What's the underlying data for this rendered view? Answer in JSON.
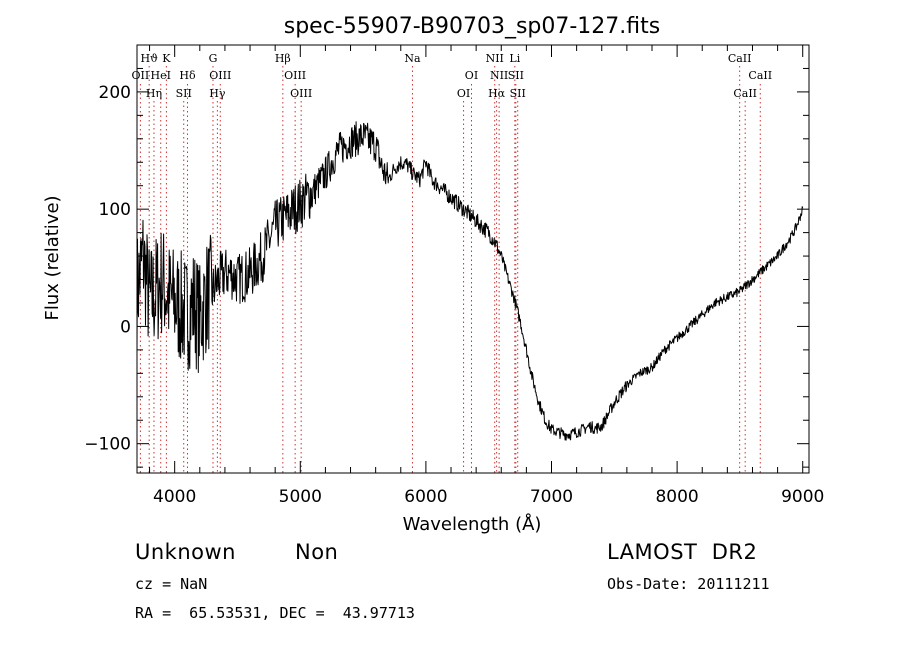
{
  "chart_data": {
    "type": "line",
    "title": "spec-55907-B90703_sp07-127.fits",
    "xlabel": "Wavelength (Å)",
    "ylabel": "Flux (relative)",
    "xlim": [
      3700,
      9050
    ],
    "ylim": [
      -125,
      240
    ],
    "xticks": [
      4000,
      5000,
      6000,
      7000,
      8000,
      9000
    ],
    "yticks": [
      -100,
      0,
      100,
      200
    ],
    "ytick_labels": [
      "−100",
      "0",
      "100",
      "200"
    ],
    "grid": false,
    "series": [
      {
        "x": [
          3700,
          3750,
          3800,
          3850,
          3900,
          3950,
          4000,
          4050,
          4100,
          4150,
          4200,
          4250,
          4300,
          4350,
          4400,
          4450,
          4500,
          4600,
          4700,
          4800,
          4900,
          5000,
          5100,
          5200,
          5300,
          5400,
          5450,
          5500,
          5550,
          5600,
          5650,
          5700,
          5750,
          5800,
          5850,
          5900,
          5950,
          6000,
          6050,
          6100,
          6200,
          6300,
          6400,
          6500,
          6550,
          6600,
          6650,
          6700,
          6750,
          6800,
          6850,
          6900,
          6950,
          7000,
          7050,
          7100,
          7150,
          7200,
          7250,
          7300,
          7350,
          7400,
          7450,
          7500,
          7600,
          7700,
          7800,
          7900,
          8000,
          8100,
          8200,
          8300,
          8400,
          8500,
          8600,
          8700,
          8800,
          8900,
          8950,
          9000
        ],
        "y": [
          30,
          60,
          20,
          30,
          40,
          25,
          20,
          15,
          10,
          20,
          5,
          25,
          30,
          40,
          45,
          45,
          40,
          45,
          60,
          85,
          95,
          105,
          115,
          130,
          150,
          158,
          160,
          162,
          158,
          155,
          135,
          125,
          135,
          140,
          138,
          130,
          125,
          140,
          125,
          120,
          110,
          100,
          90,
          80,
          72,
          60,
          42,
          25,
          5,
          -20,
          -45,
          -65,
          -80,
          -88,
          -90,
          -92,
          -92,
          -90,
          -88,
          -85,
          -87,
          -85,
          -75,
          -65,
          -50,
          -40,
          -35,
          -20,
          -10,
          0,
          10,
          20,
          25,
          30,
          40,
          50,
          60,
          75,
          85,
          100
        ]
      }
    ],
    "line_markers": [
      {
        "label": "Hϑ",
        "x": 3797,
        "row": 1
      },
      {
        "label": "K",
        "x": 3934,
        "row": 1
      },
      {
        "label": "G",
        "x": 4305,
        "row": 1
      },
      {
        "label": "Hβ",
        "x": 4861,
        "row": 1
      },
      {
        "label": "Na",
        "x": 5893,
        "row": 1
      },
      {
        "label": "NII",
        "x": 6548,
        "row": 1
      },
      {
        "label": "Li",
        "x": 6708,
        "row": 1
      },
      {
        "label": "CaII",
        "x": 8498,
        "row": 1
      },
      {
        "label": "OII",
        "x": 3727,
        "row": 2
      },
      {
        "label": "HeI",
        "x": 3889,
        "row": 2
      },
      {
        "label": "Hδ",
        "x": 4102,
        "row": 2
      },
      {
        "label": "OIII",
        "x": 4363,
        "row": 2
      },
      {
        "label": "OIII",
        "x": 4959,
        "row": 2
      },
      {
        "label": "OI",
        "x": 6363,
        "row": 2
      },
      {
        "label": "NII",
        "x": 6583,
        "row": 2
      },
      {
        "label": "SII",
        "x": 6716,
        "row": 2
      },
      {
        "label": "CaII",
        "x": 8662,
        "row": 2
      },
      {
        "label": "Hη",
        "x": 3835,
        "row": 3
      },
      {
        "label": "SII",
        "x": 4072,
        "row": 3
      },
      {
        "label": "Hγ",
        "x": 4340,
        "row": 3
      },
      {
        "label": "OIII",
        "x": 5007,
        "row": 3
      },
      {
        "label": "OI",
        "x": 6300,
        "row": 3
      },
      {
        "label": "Hα",
        "x": 6563,
        "row": 3
      },
      {
        "label": "SII",
        "x": 6731,
        "row": 3
      },
      {
        "label": "CaII",
        "x": 8542,
        "row": 3
      }
    ]
  },
  "info": {
    "class_label": "Unknown",
    "subclass_label": "Non",
    "survey_label": "LAMOST  DR2",
    "cz_text": "cz = NaN",
    "obs_date_text": "Obs-Date: 20111211",
    "coords_text": "RA =  65.53531, DEC =  43.97713"
  }
}
